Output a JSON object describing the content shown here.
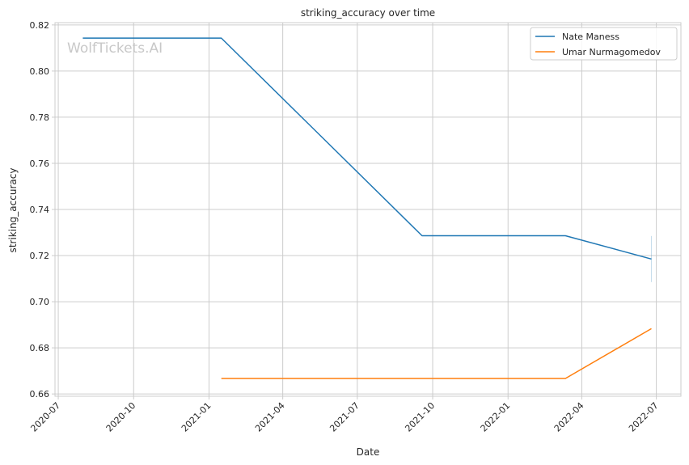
{
  "chart_data": {
    "type": "line",
    "title": "striking_accuracy over time",
    "xlabel": "Date",
    "ylabel": "striking_accuracy",
    "watermark": "WolfTickets.AI",
    "x_ticks": [
      "2020-07",
      "2020-10",
      "2021-01",
      "2021-04",
      "2021-07",
      "2021-10",
      "2022-01",
      "2022-04",
      "2022-07"
    ],
    "y_ticks": [
      0.66,
      0.68,
      0.7,
      0.72,
      0.74,
      0.76,
      0.78,
      0.8,
      0.82
    ],
    "y_tick_labels": [
      "0.66",
      "0.68",
      "0.70",
      "0.72",
      "0.74",
      "0.76",
      "0.78",
      "0.80",
      "0.82"
    ],
    "xlim": [
      "2020-06-27",
      "2022-07-31"
    ],
    "ylim": [
      0.659,
      0.821
    ],
    "grid": true,
    "legend_position": "top-right",
    "series": [
      {
        "name": "Nate Maness",
        "color": "#1f77b4",
        "points": [
          {
            "x": "2020-07-31",
            "y": 0.8143
          },
          {
            "x": "2021-01-16",
            "y": 0.8143
          },
          {
            "x": "2021-09-18",
            "y": 0.7286
          },
          {
            "x": "2022-03-12",
            "y": 0.7286
          },
          {
            "x": "2022-06-25",
            "y": 0.7185
          }
        ],
        "error_bar": {
          "x": "2022-06-25",
          "low": 0.7085,
          "high": 0.7285
        }
      },
      {
        "name": "Umar Nurmagomedov",
        "color": "#ff7f0e",
        "points": [
          {
            "x": "2021-01-16",
            "y": 0.6667
          },
          {
            "x": "2022-03-12",
            "y": 0.6667
          },
          {
            "x": "2022-06-25",
            "y": 0.6883
          }
        ]
      }
    ]
  }
}
